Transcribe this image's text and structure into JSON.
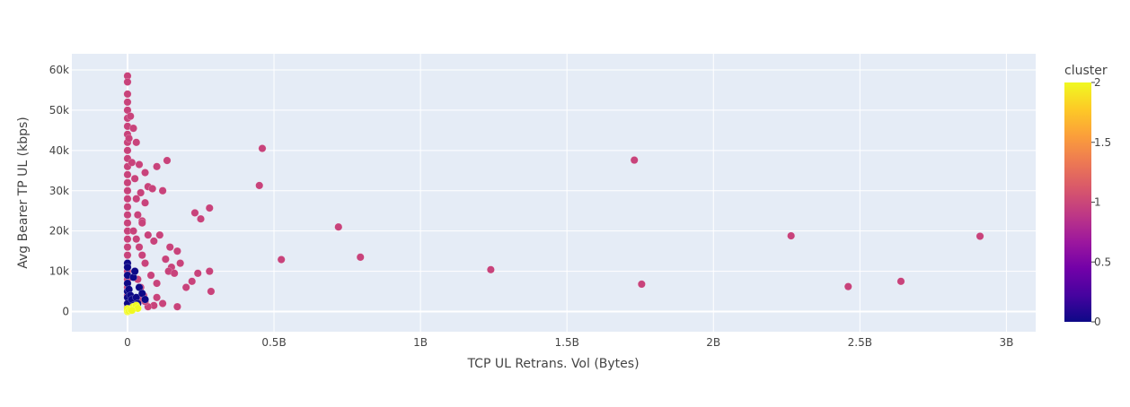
{
  "chart_data": {
    "type": "scatter",
    "title": "",
    "xlabel": "TCP UL Retrans. Vol (Bytes)",
    "ylabel": "Avg Bearer TP UL (kbps)",
    "xlim": [
      -190000000,
      3100000000
    ],
    "ylim": [
      -5000,
      64000
    ],
    "x_ticks": [
      {
        "value": 0,
        "label": "0"
      },
      {
        "value": 500000000,
        "label": "0.5B"
      },
      {
        "value": 1000000000,
        "label": "1B"
      },
      {
        "value": 1500000000,
        "label": "1.5B"
      },
      {
        "value": 2000000000,
        "label": "2B"
      },
      {
        "value": 2500000000,
        "label": "2.5B"
      },
      {
        "value": 3000000000,
        "label": "3B"
      }
    ],
    "y_ticks": [
      {
        "value": 0,
        "label": "0"
      },
      {
        "value": 10000,
        "label": "10k"
      },
      {
        "value": 20000,
        "label": "20k"
      },
      {
        "value": 30000,
        "label": "30k"
      },
      {
        "value": 40000,
        "label": "40k"
      },
      {
        "value": 50000,
        "label": "50k"
      },
      {
        "value": 60000,
        "label": "60k"
      }
    ],
    "grid": true,
    "colorbar": {
      "title": "cluster",
      "min": 0,
      "max": 2,
      "ticks": [
        {
          "value": 0,
          "label": "0"
        },
        {
          "value": 0.5,
          "label": "0.5"
        },
        {
          "value": 1,
          "label": "1"
        },
        {
          "value": 1.5,
          "label": "1.5"
        },
        {
          "value": 2,
          "label": "2"
        }
      ],
      "colorscale": [
        "#0d0887",
        "#46039f",
        "#7201a8",
        "#9c179e",
        "#bd3786",
        "#d8576b",
        "#ed7953",
        "#fb9f3a",
        "#fdca26",
        "#f0f921"
      ]
    },
    "series": [
      {
        "cluster": 1,
        "color": "#c8437b",
        "x": [
          0,
          0,
          0,
          0,
          0,
          0,
          0,
          0,
          0,
          0,
          0,
          0,
          0,
          0,
          0,
          0,
          0,
          0,
          0,
          0,
          0,
          0,
          0,
          0,
          0,
          0,
          0,
          0,
          0,
          0,
          5000000,
          10000000,
          15000000,
          20000000,
          25000000,
          30000000,
          35000000,
          40000000,
          45000000,
          50000000,
          20000000,
          30000000,
          40000000,
          50000000,
          60000000,
          25000000,
          35000000,
          45000000,
          55000000,
          30000000,
          60000000,
          70000000,
          85000000,
          100000000,
          120000000,
          135000000,
          145000000,
          60000000,
          50000000,
          70000000,
          90000000,
          110000000,
          130000000,
          150000000,
          170000000,
          180000000,
          80000000,
          100000000,
          140000000,
          160000000,
          200000000,
          220000000,
          240000000,
          280000000,
          285000000,
          100000000,
          120000000,
          90000000,
          70000000,
          60000000,
          40000000,
          170000000,
          230000000,
          250000000,
          280000000,
          450000000,
          460000000,
          525000000,
          720000000,
          795000000,
          1240000000,
          1730000000,
          1755000000,
          2265000000,
          2460000000,
          2640000000,
          2910000000
        ],
        "y": [
          58500,
          57000,
          54000,
          52000,
          50000,
          48000,
          46000,
          44000,
          42000,
          40000,
          38000,
          36000,
          34000,
          32000,
          30000,
          28000,
          26000,
          24000,
          22000,
          20000,
          18000,
          16000,
          14000,
          12000,
          10000,
          8000,
          6000,
          4000,
          2000,
          1000,
          43000,
          48500,
          37000,
          45500,
          33000,
          28000,
          24000,
          36500,
          29500,
          22500,
          20000,
          18000,
          16000,
          14000,
          12000,
          10000,
          8000,
          6000,
          4000,
          42000,
          34500,
          31000,
          30500,
          36000,
          30000,
          37500,
          16000,
          27000,
          22000,
          19000,
          17500,
          19000,
          13000,
          11000,
          15000,
          12000,
          9000,
          7000,
          10000,
          9500,
          6000,
          7500,
          9500,
          10000,
          5000,
          3500,
          2000,
          1500,
          1200,
          2500,
          3000,
          1200,
          24500,
          23000,
          25700,
          31300,
          40500,
          12900,
          21000,
          13500,
          10400,
          37600,
          6800,
          18800,
          6200,
          7500,
          18700
        ]
      },
      {
        "cluster": 0,
        "color": "#0d0887",
        "x": [
          0,
          0,
          0,
          0,
          0,
          0,
          0,
          5000000,
          10000000,
          15000000,
          20000000,
          25000000,
          30000000,
          40000000,
          50000000,
          60000000,
          35000000,
          20000000
        ],
        "y": [
          12000,
          11000,
          9000,
          7000,
          5000,
          3500,
          2000,
          5500,
          4000,
          3000,
          8500,
          10000,
          3500,
          6000,
          4500,
          3000,
          2000,
          1500
        ]
      },
      {
        "cluster": 2,
        "color": "#f0f921",
        "x": [
          0,
          0,
          0,
          5000000,
          10000000,
          20000000,
          30000000,
          35000000,
          15000000
        ],
        "y": [
          0,
          300,
          700,
          200,
          500,
          1200,
          1500,
          800,
          300
        ]
      }
    ]
  }
}
